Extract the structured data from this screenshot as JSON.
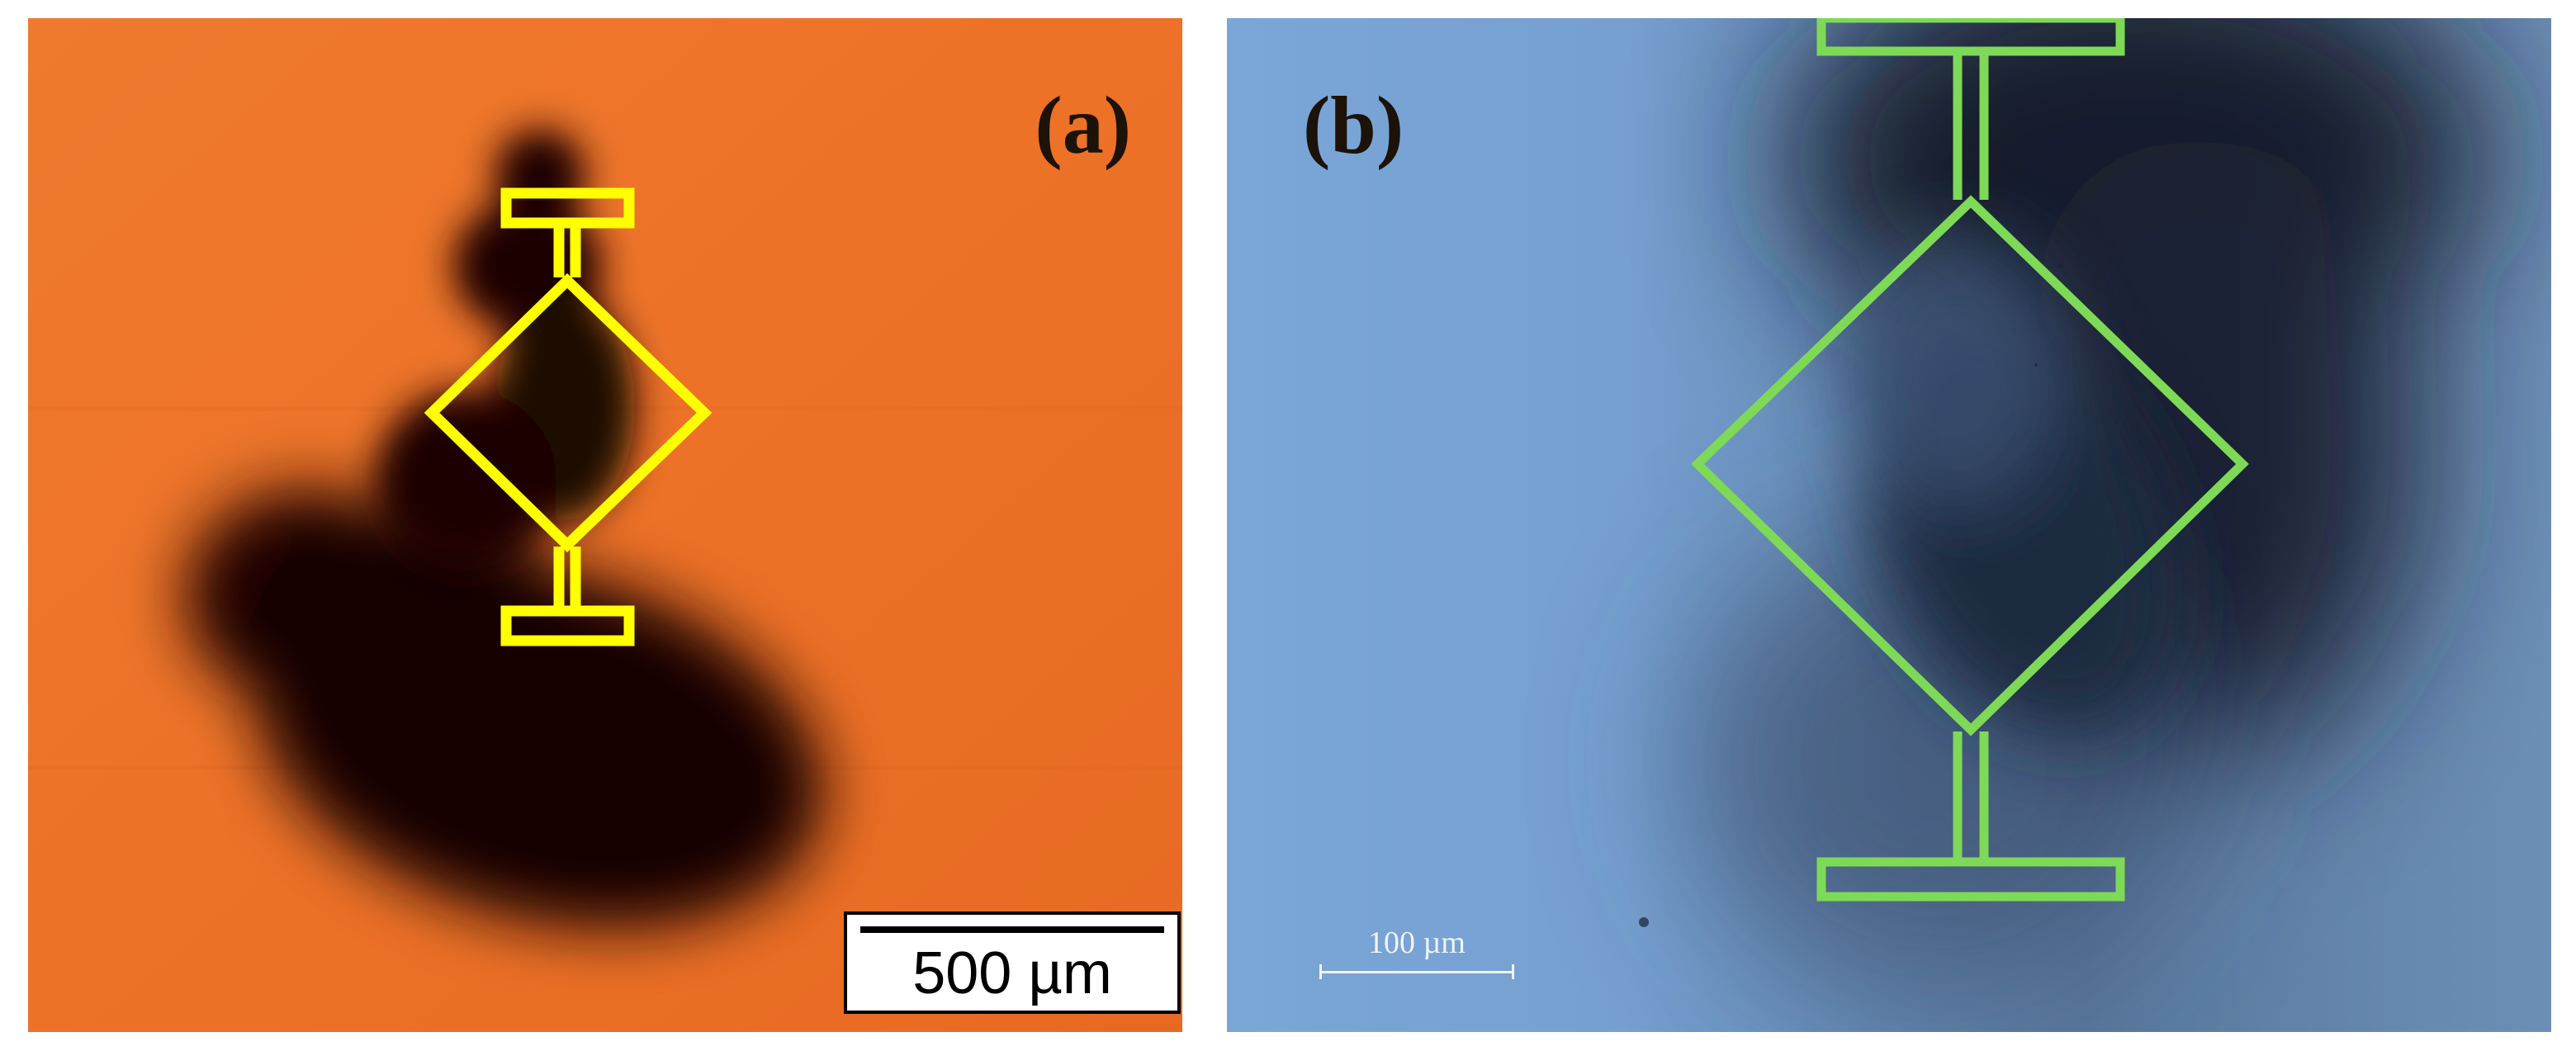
{
  "panels": {
    "a": {
      "label": "(a)",
      "scale_bar": "500 µm",
      "background_color": "#ed7127",
      "outline_color": "#ffff00"
    },
    "b": {
      "label": "(b)",
      "scale_bar": "100 µm",
      "background_color": "#6e96c2",
      "outline_color": "#7ed957"
    }
  }
}
